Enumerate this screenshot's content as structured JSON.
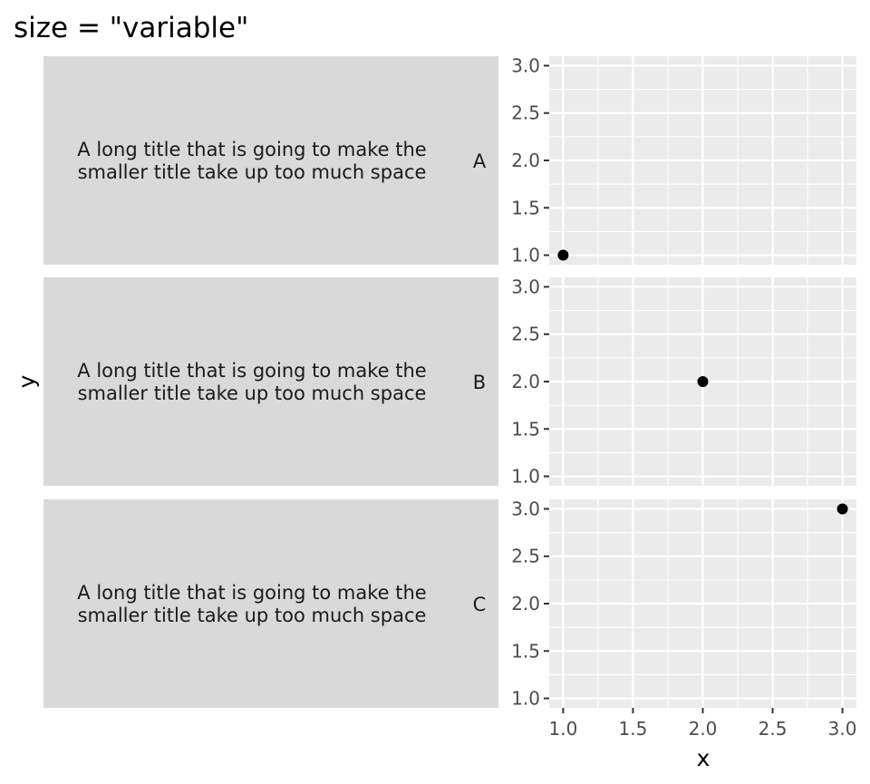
{
  "chart_data": {
    "type": "scatter",
    "title": "size = \"variable\"",
    "xlabel": "x",
    "ylabel": "y",
    "xlim": [
      0.9,
      3.1
    ],
    "ylim": [
      0.9,
      3.1
    ],
    "x_ticks": [
      "1.0",
      "1.5",
      "2.0",
      "2.5",
      "3.0"
    ],
    "y_ticks": [
      "1.0",
      "1.5",
      "2.0",
      "2.5",
      "3.0"
    ],
    "grid": true,
    "colors": {
      "panel_background": "#ebebeb",
      "strip_background": "#d9d9d9",
      "grid_line": "#ffffff",
      "point": "#000000",
      "tick_text": "#4d4d4d"
    },
    "facets": [
      {
        "label_outer": "A long title that is going to make the\nsmaller title take up too much space",
        "label_inner": "A",
        "points": [
          {
            "x": 1,
            "y": 1
          }
        ]
      },
      {
        "label_outer": "A long title that is going to make the\nsmaller title take up too much space",
        "label_inner": "B",
        "points": [
          {
            "x": 2,
            "y": 2
          }
        ]
      },
      {
        "label_outer": "A long title that is going to make the\nsmaller title take up too much space",
        "label_inner": "C",
        "points": [
          {
            "x": 3,
            "y": 3
          }
        ]
      }
    ]
  }
}
